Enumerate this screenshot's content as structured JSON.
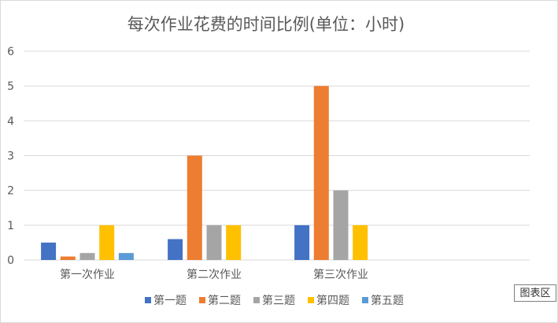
{
  "chart_data": {
    "type": "bar",
    "title": "每次作业花费的时间比例(单位：小时)",
    "categories": [
      "第一次作业",
      "第二次作业",
      "第三次作业"
    ],
    "series": [
      {
        "name": "第一题",
        "color": "#4472C4",
        "values": [
          0.5,
          0.6,
          1
        ]
      },
      {
        "name": "第二题",
        "color": "#ED7D31",
        "values": [
          0.1,
          3,
          5
        ]
      },
      {
        "name": "第三题",
        "color": "#A5A5A5",
        "values": [
          0.2,
          1,
          2
        ]
      },
      {
        "name": "第四题",
        "color": "#FFC000",
        "values": [
          1,
          1,
          1
        ]
      },
      {
        "name": "第五题",
        "color": "#5B9BD5",
        "values": [
          0.2,
          null,
          null
        ]
      }
    ],
    "ylim": [
      0,
      6
    ],
    "yticks": [
      0,
      1,
      2,
      3,
      4,
      5,
      6
    ],
    "grid": true,
    "legend_position": "bottom"
  },
  "tooltip": "图表区"
}
